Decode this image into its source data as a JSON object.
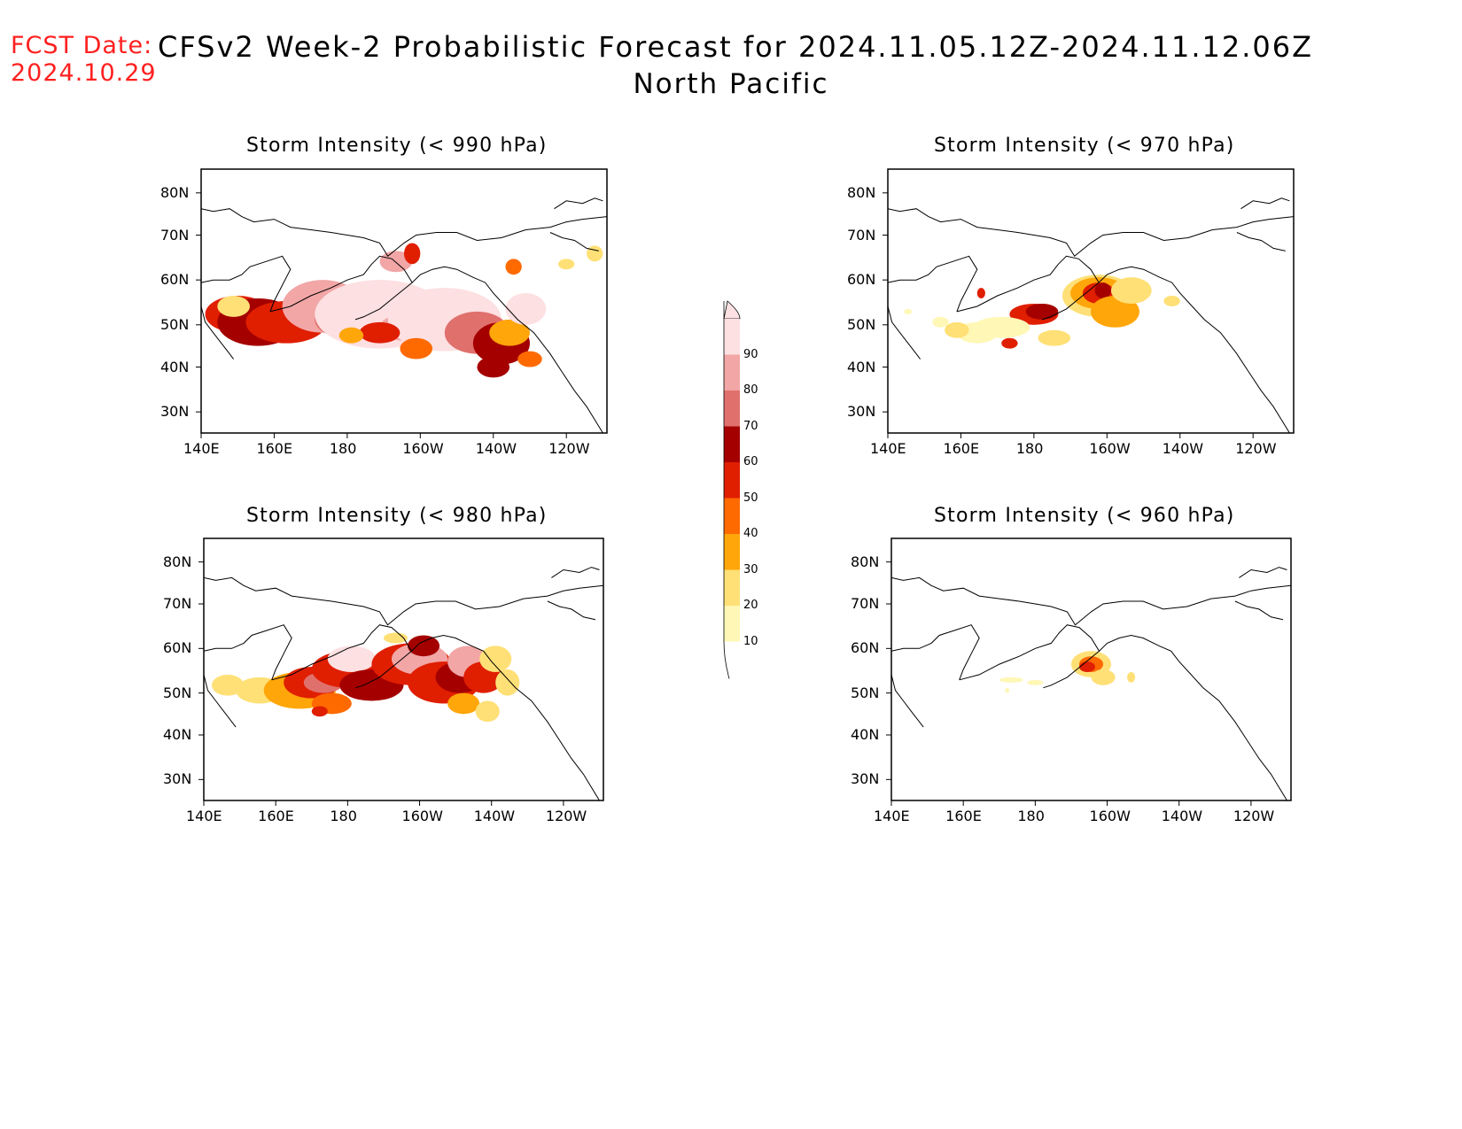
{
  "header": {
    "fcst_label": "FCST Date:",
    "fcst_date": "2024.10.29",
    "title": "CFSv2 Week-2 Probabilistic Forecast for 2024.11.05.12Z-2024.11.12.06Z",
    "subtitle": "North Pacific"
  },
  "axes": {
    "lat_labels": [
      "80N",
      "70N",
      "60N",
      "50N",
      "40N",
      "30N"
    ],
    "lon_labels": [
      "140E",
      "160E",
      "180",
      "160W",
      "140W",
      "120W"
    ]
  },
  "legend": {
    "levels": [
      "10",
      "20",
      "30",
      "40",
      "50",
      "60",
      "70",
      "80",
      "90"
    ],
    "colors": [
      "#fff7b5",
      "#ffe076",
      "#ffa60a",
      "#ff6a00",
      "#e01e00",
      "#a50000",
      "#e0706c",
      "#f2a6a6",
      "#fde0e2"
    ]
  },
  "panels": [
    {
      "id": "p990",
      "title": "Storm Intensity (< 990 hPa)"
    },
    {
      "id": "p970",
      "title": "Storm Intensity (< 970 hPa)"
    },
    {
      "id": "p980",
      "title": "Storm Intensity (< 980 hPa)"
    },
    {
      "id": "p960",
      "title": "Storm Intensity (< 960 hPa)"
    }
  ]
}
